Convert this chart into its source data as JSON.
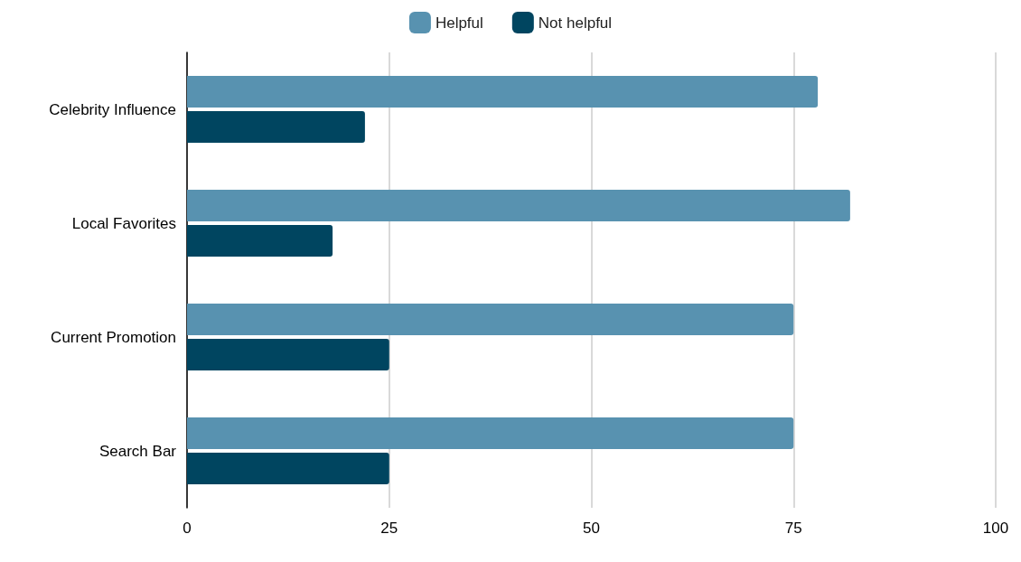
{
  "chart_data": {
    "type": "bar",
    "orientation": "horizontal",
    "categories": [
      "Celebrity Influence",
      "Local Favorites",
      "Current Promotion",
      "Search Bar"
    ],
    "series": [
      {
        "name": "Helpful",
        "color": "#5892b0",
        "values": [
          78,
          82,
          75,
          75
        ]
      },
      {
        "name": "Not helpful",
        "color": "#004560",
        "values": [
          22,
          18,
          25,
          25
        ]
      }
    ],
    "xlim": [
      0,
      100
    ],
    "xticks": [
      0,
      25,
      50,
      75,
      100
    ],
    "grid": "x",
    "legend": "top"
  }
}
